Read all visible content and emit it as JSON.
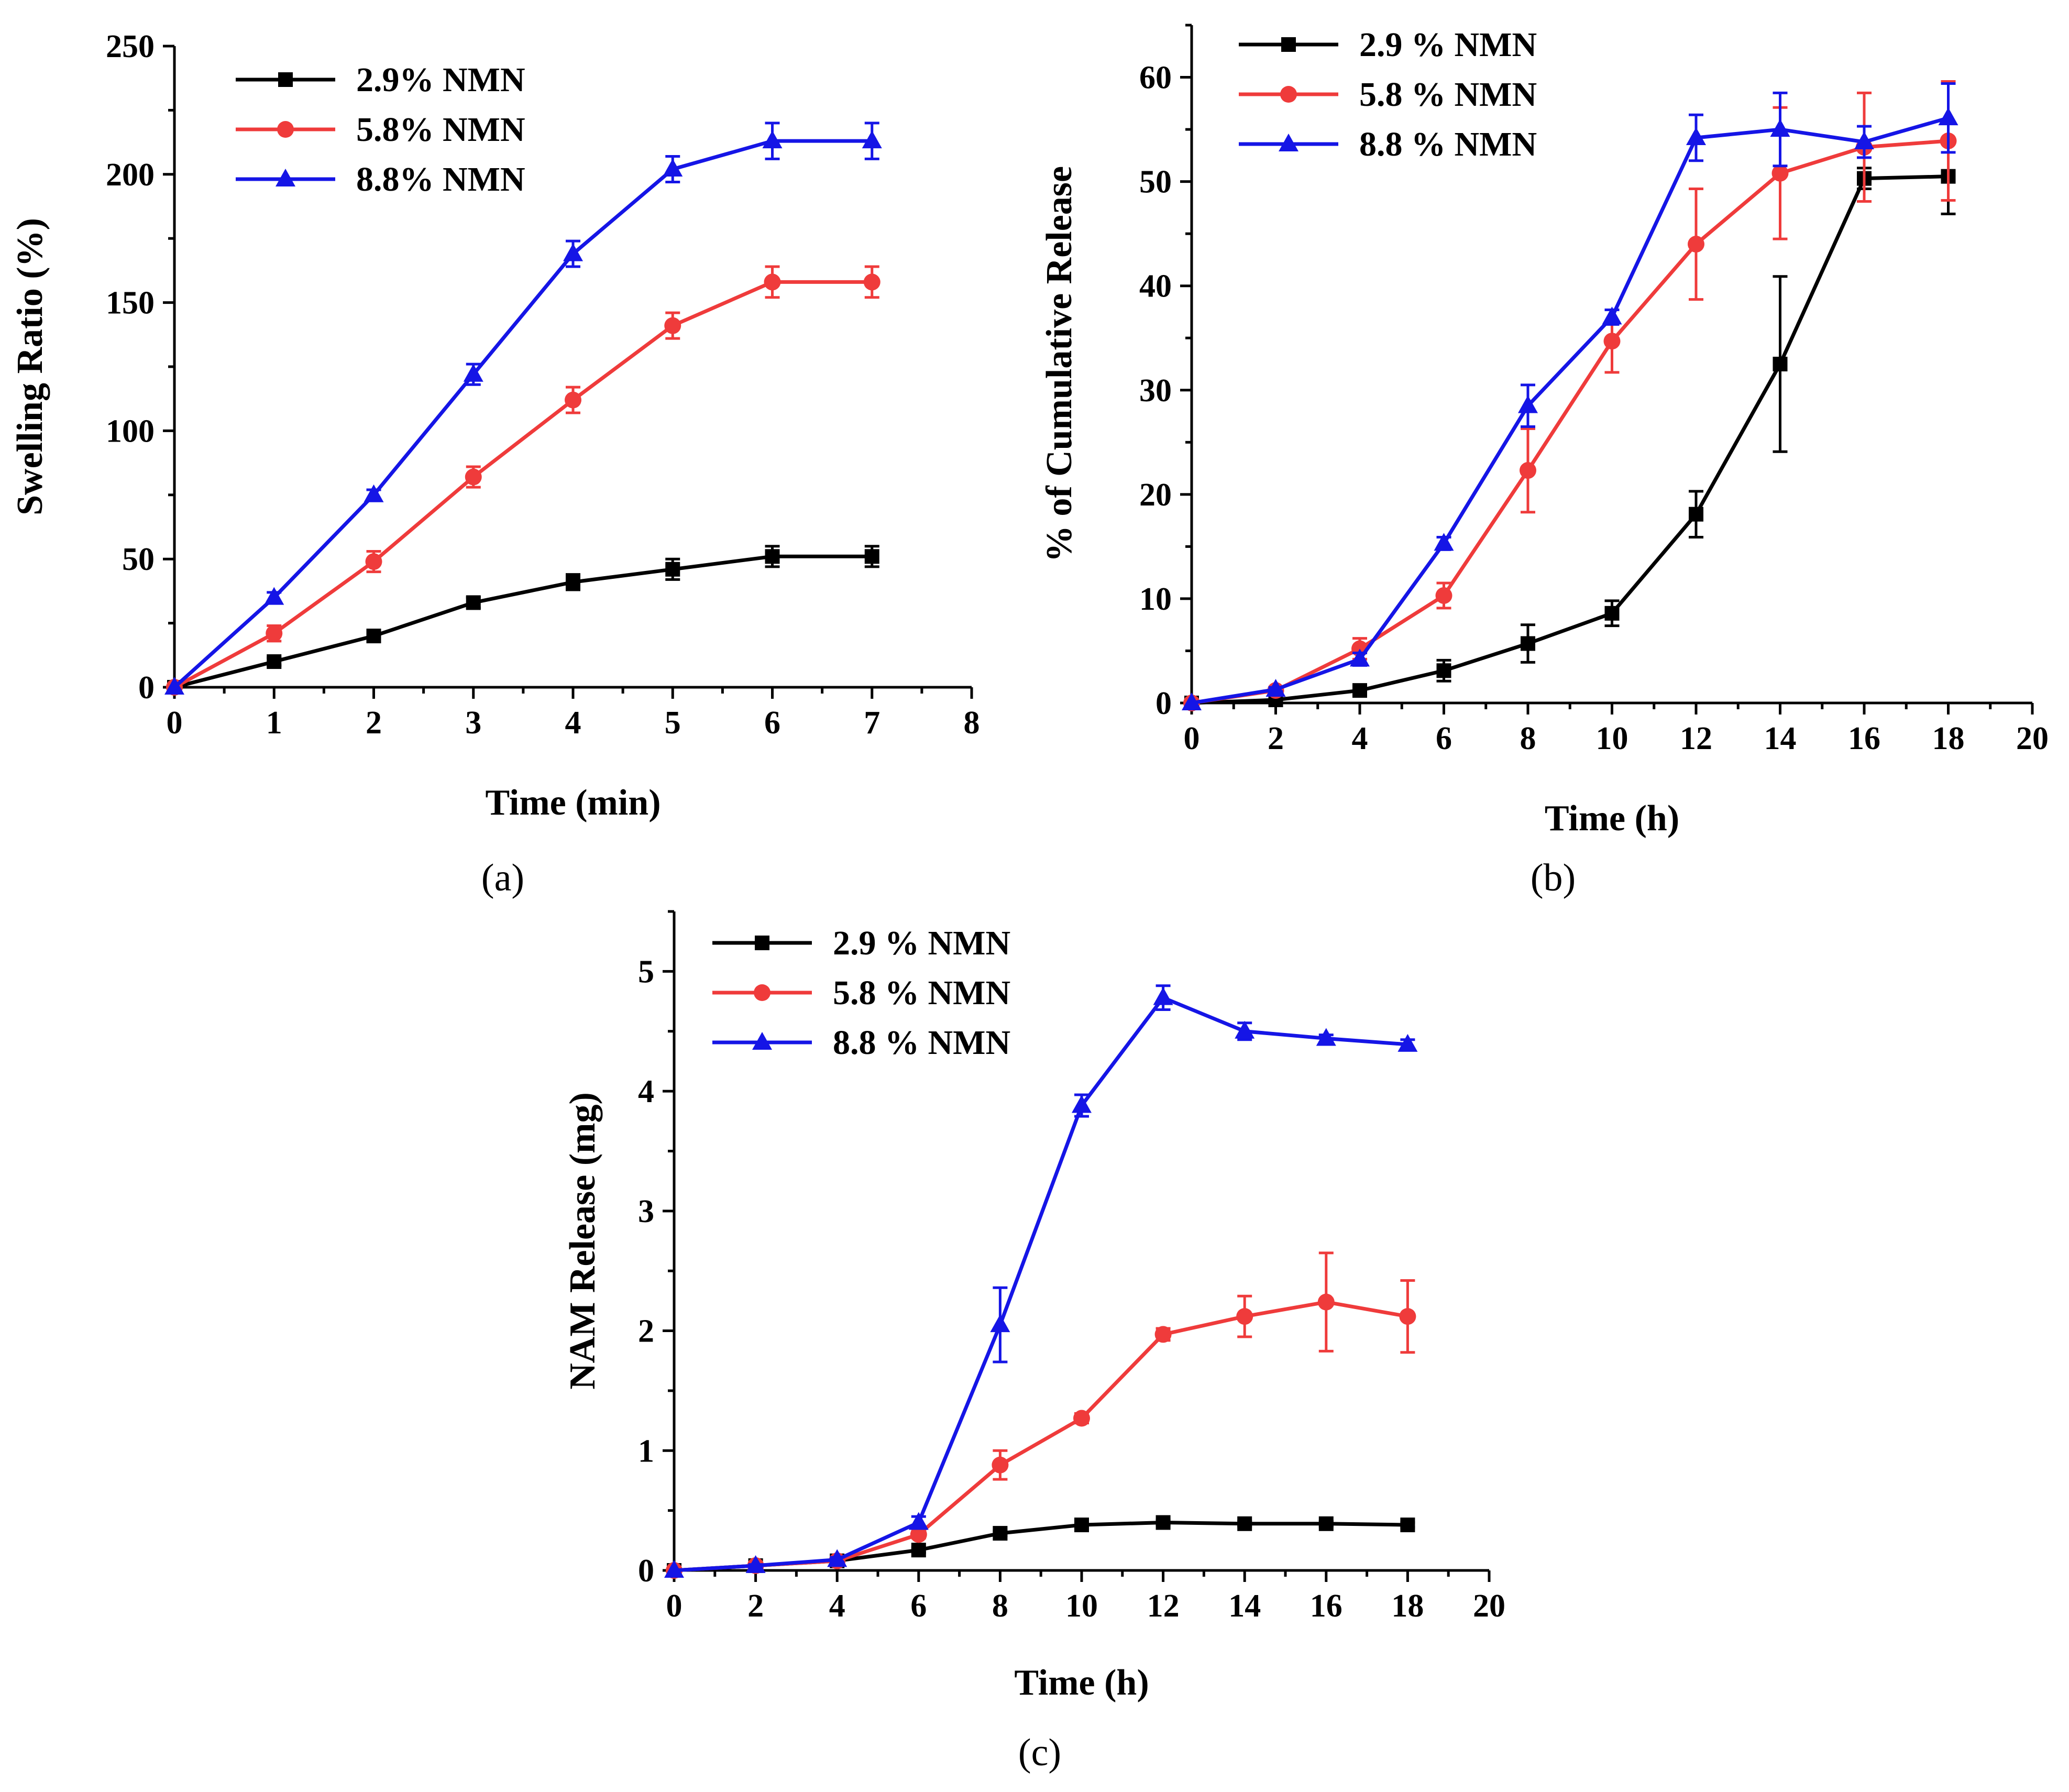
{
  "chart_data": [
    {
      "type": "line",
      "panel": "(a)",
      "xlabel": "Time (min)",
      "ylabel": "Swelling Ratio (%)",
      "xlim": [
        0,
        8
      ],
      "ylim": [
        0,
        250
      ],
      "xticks": [
        "0",
        "1",
        "2",
        "3",
        "4",
        "5",
        "6",
        "7",
        "8"
      ],
      "yticks": [
        "0",
        "50",
        "100",
        "150",
        "200",
        "250"
      ],
      "legend_position": "top-left",
      "x": [
        0,
        1,
        2,
        3,
        4,
        5,
        6,
        7
      ],
      "series": [
        {
          "name": "2.9% NMN",
          "color": "#000000",
          "marker": "square",
          "values": [
            0,
            10,
            20,
            33,
            41,
            46,
            51,
            51
          ],
          "errors": [
            0,
            1.5,
            1.5,
            2,
            3,
            4,
            4,
            4
          ]
        },
        {
          "name": "5.8% NMN",
          "color": "#ef3b3b",
          "marker": "circle",
          "values": [
            0,
            21,
            49,
            82,
            112,
            141,
            158,
            158
          ],
          "errors": [
            0,
            3,
            4,
            4,
            5,
            5,
            6,
            6
          ]
        },
        {
          "name": "8.8% NMN",
          "color": "#1515e6",
          "marker": "triangle",
          "values": [
            0,
            35,
            75,
            122,
            169,
            202,
            213,
            213
          ],
          "errors": [
            0,
            2,
            2,
            4,
            5,
            5,
            7,
            7
          ]
        }
      ]
    },
    {
      "type": "line",
      "panel": "(b)",
      "xlabel": "Time (h)",
      "ylabel": "% of Cumulative Release",
      "xlim": [
        0,
        20
      ],
      "ylim": [
        0,
        65
      ],
      "xticks": [
        "0",
        "2",
        "4",
        "6",
        "8",
        "10",
        "12",
        "14",
        "16",
        "18",
        "20"
      ],
      "yticks": [
        "0",
        "10",
        "20",
        "30",
        "40",
        "50",
        "60"
      ],
      "legend_position": "top-left",
      "x": [
        0,
        2,
        4,
        6,
        8,
        10,
        12,
        14,
        16,
        18
      ],
      "series": [
        {
          "name": "2.9 % NMN",
          "color": "#000000",
          "marker": "square",
          "values": [
            0,
            0.3,
            1.2,
            3.1,
            5.7,
            8.6,
            18.1,
            32.5,
            50.3,
            50.5
          ],
          "errors": [
            0,
            0.2,
            0.4,
            1,
            1.8,
            1.2,
            2.2,
            8.4,
            1,
            3.6
          ]
        },
        {
          "name": "5.8 % NMN",
          "color": "#ef3b3b",
          "marker": "circle",
          "values": [
            0,
            1.2,
            5.2,
            10.3,
            22.3,
            34.7,
            44.0,
            50.8,
            53.3,
            53.9
          ],
          "errors": [
            0,
            0.3,
            1,
            1.2,
            4,
            3,
            5.3,
            6.3,
            5.2,
            5.7
          ]
        },
        {
          "name": "8.8 % NMN",
          "color": "#1515e6",
          "marker": "triangle",
          "values": [
            0,
            1.3,
            4.2,
            15.3,
            28.5,
            37.0,
            54.2,
            55.0,
            53.8,
            56.1
          ],
          "errors": [
            0,
            0.2,
            0.6,
            0.6,
            2,
            0.7,
            2.2,
            3.5,
            1.5,
            3.3
          ]
        }
      ]
    },
    {
      "type": "line",
      "panel": "(c)",
      "xlabel": "Time (h)",
      "ylabel": "NAM Release (mg)",
      "xlim": [
        0,
        20
      ],
      "ylim": [
        0,
        5.5
      ],
      "xticks": [
        "0",
        "2",
        "4",
        "6",
        "8",
        "10",
        "12",
        "14",
        "16",
        "18",
        "20"
      ],
      "yticks": [
        "0",
        "1",
        "2",
        "3",
        "4",
        "5"
      ],
      "legend_position": "top-left",
      "x": [
        0,
        2,
        4,
        6,
        8,
        10,
        12,
        14,
        16,
        18
      ],
      "series": [
        {
          "name": "2.9 % NMN",
          "color": "#000000",
          "marker": "square",
          "values": [
            0,
            0.04,
            0.08,
            0.17,
            0.31,
            0.38,
            0.4,
            0.39,
            0.39,
            0.38
          ],
          "errors": [
            0,
            0.01,
            0.01,
            0.02,
            0.02,
            0.02,
            0.02,
            0.02,
            0.02,
            0.02
          ]
        },
        {
          "name": "5.8 % NMN",
          "color": "#ef3b3b",
          "marker": "circle",
          "values": [
            0,
            0.04,
            0.08,
            0.3,
            0.88,
            1.27,
            1.97,
            2.12,
            2.24,
            2.12
          ],
          "errors": [
            0,
            0.01,
            0.01,
            0.03,
            0.12,
            0.04,
            0.05,
            0.17,
            0.41,
            0.3
          ]
        },
        {
          "name": "8.8 % NMN",
          "color": "#1515e6",
          "marker": "triangle",
          "values": [
            0,
            0.04,
            0.09,
            0.4,
            2.05,
            3.88,
            4.78,
            4.5,
            4.44,
            4.39
          ],
          "errors": [
            0,
            0.01,
            0.02,
            0.05,
            0.31,
            0.09,
            0.1,
            0.07,
            0.03,
            0.04
          ]
        }
      ]
    }
  ]
}
